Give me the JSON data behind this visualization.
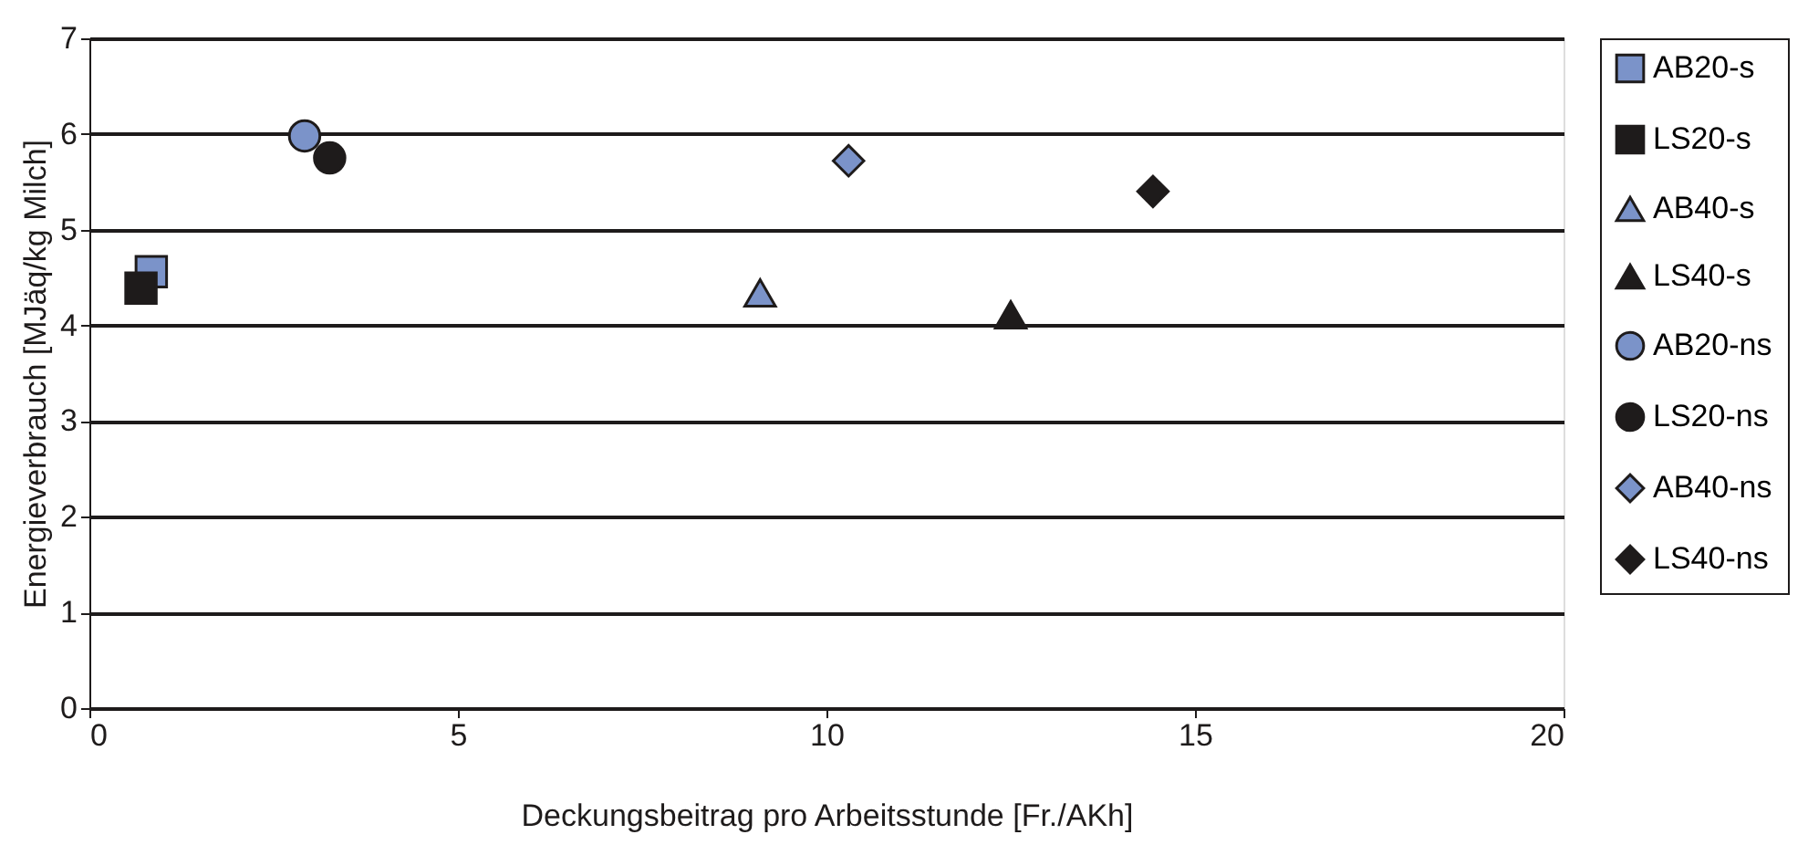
{
  "chart_data": {
    "type": "scatter",
    "xlabel": "Deckungsbeitrag pro Arbeitsstunde [Fr./AKh]",
    "ylabel": "Energieverbrauch [MJäq/kg Milch]",
    "xlim": [
      0,
      20
    ],
    "xticks": [
      0,
      5,
      10,
      15,
      20
    ],
    "ylim": [
      0,
      7
    ],
    "yticks": [
      0,
      1,
      2,
      3,
      4,
      5,
      6,
      7
    ],
    "grid": "y",
    "legend": "right",
    "series": [
      {
        "name": "AB20-s",
        "color": "#7b93c9",
        "marker": "square",
        "x": [
          0.84
        ],
        "values": [
          4.56
        ]
      },
      {
        "name": "LS20-s",
        "color": "#1e1b1b",
        "marker": "square",
        "x": [
          0.7
        ],
        "values": [
          4.39
        ]
      },
      {
        "name": "AB40-s",
        "color": "#7b93c9",
        "marker": "triangle",
        "x": [
          9.1
        ],
        "values": [
          4.34
        ]
      },
      {
        "name": "LS40-s",
        "color": "#1e1b1b",
        "marker": "triangle",
        "x": [
          12.5
        ],
        "values": [
          4.11
        ]
      },
      {
        "name": "AB20-ns",
        "color": "#7b93c9",
        "marker": "circle",
        "x": [
          2.92
        ],
        "values": [
          5.98
        ]
      },
      {
        "name": "LS20-ns",
        "color": "#1e1b1b",
        "marker": "circle",
        "x": [
          3.26
        ],
        "values": [
          5.75
        ]
      },
      {
        "name": "AB40-ns",
        "color": "#7b93c9",
        "marker": "diamond",
        "x": [
          10.3
        ],
        "values": [
          5.72
        ]
      },
      {
        "name": "LS40-ns",
        "color": "#1e1b1b",
        "marker": "diamond",
        "x": [
          14.43
        ],
        "values": [
          5.4
        ]
      }
    ]
  }
}
